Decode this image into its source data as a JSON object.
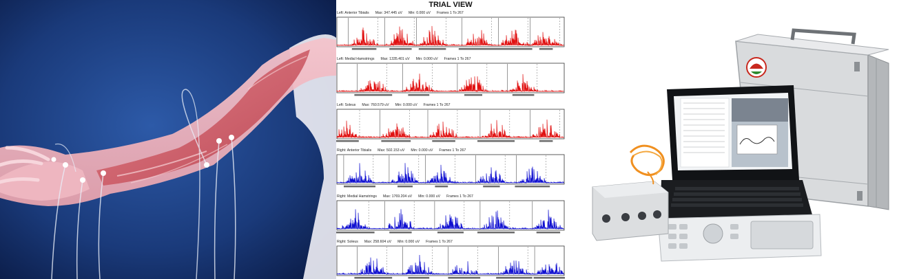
{
  "trial_view": {
    "title": "TRIAL VIEW",
    "strips": [
      {
        "muscle": "Left: Anterior Tibialis",
        "max": "Max: 347.445 uV",
        "min": "Min: 0.000 uV",
        "frames": "Frames 1 To 267",
        "color": "#e01010"
      },
      {
        "muscle": "Left: Medial Hamstrings",
        "max": "Max: 1335.401 uV",
        "min": "Min: 0.000 uV",
        "frames": "Frames 1 To 267",
        "color": "#e01010"
      },
      {
        "muscle": "Left: Soleus",
        "max": "Max: 760.579 uV",
        "min": "Min: 0.000 uV",
        "frames": "Frames 1 To 267",
        "color": "#e01010"
      },
      {
        "muscle": "Right: Anterior Tibialis",
        "max": "Max: 502.153 uV",
        "min": "Min: 0.000 uV",
        "frames": "Frames 1 To 267",
        "color": "#1010d0"
      },
      {
        "muscle": "Right: Medial Hamstrings",
        "max": "Max: 1769.204 uV",
        "min": "Min: 0.000 uV",
        "frames": "Frames 1 To 267",
        "color": "#1010d0"
      },
      {
        "muscle": "Right: Soleus",
        "max": "Max: 258.604 uV",
        "min": "Min: 0.000 uV",
        "frames": "Frames 1 To 267",
        "color": "#1010d0"
      }
    ]
  },
  "colors": {
    "background_blue": "#1a3a7a",
    "muscle": "#d46a72",
    "emg_left": "#e01010",
    "emg_right": "#1010d0",
    "case_silver": "#d8dadc",
    "logo_red": "#c8281e",
    "logo_green": "#2e8a2e"
  }
}
